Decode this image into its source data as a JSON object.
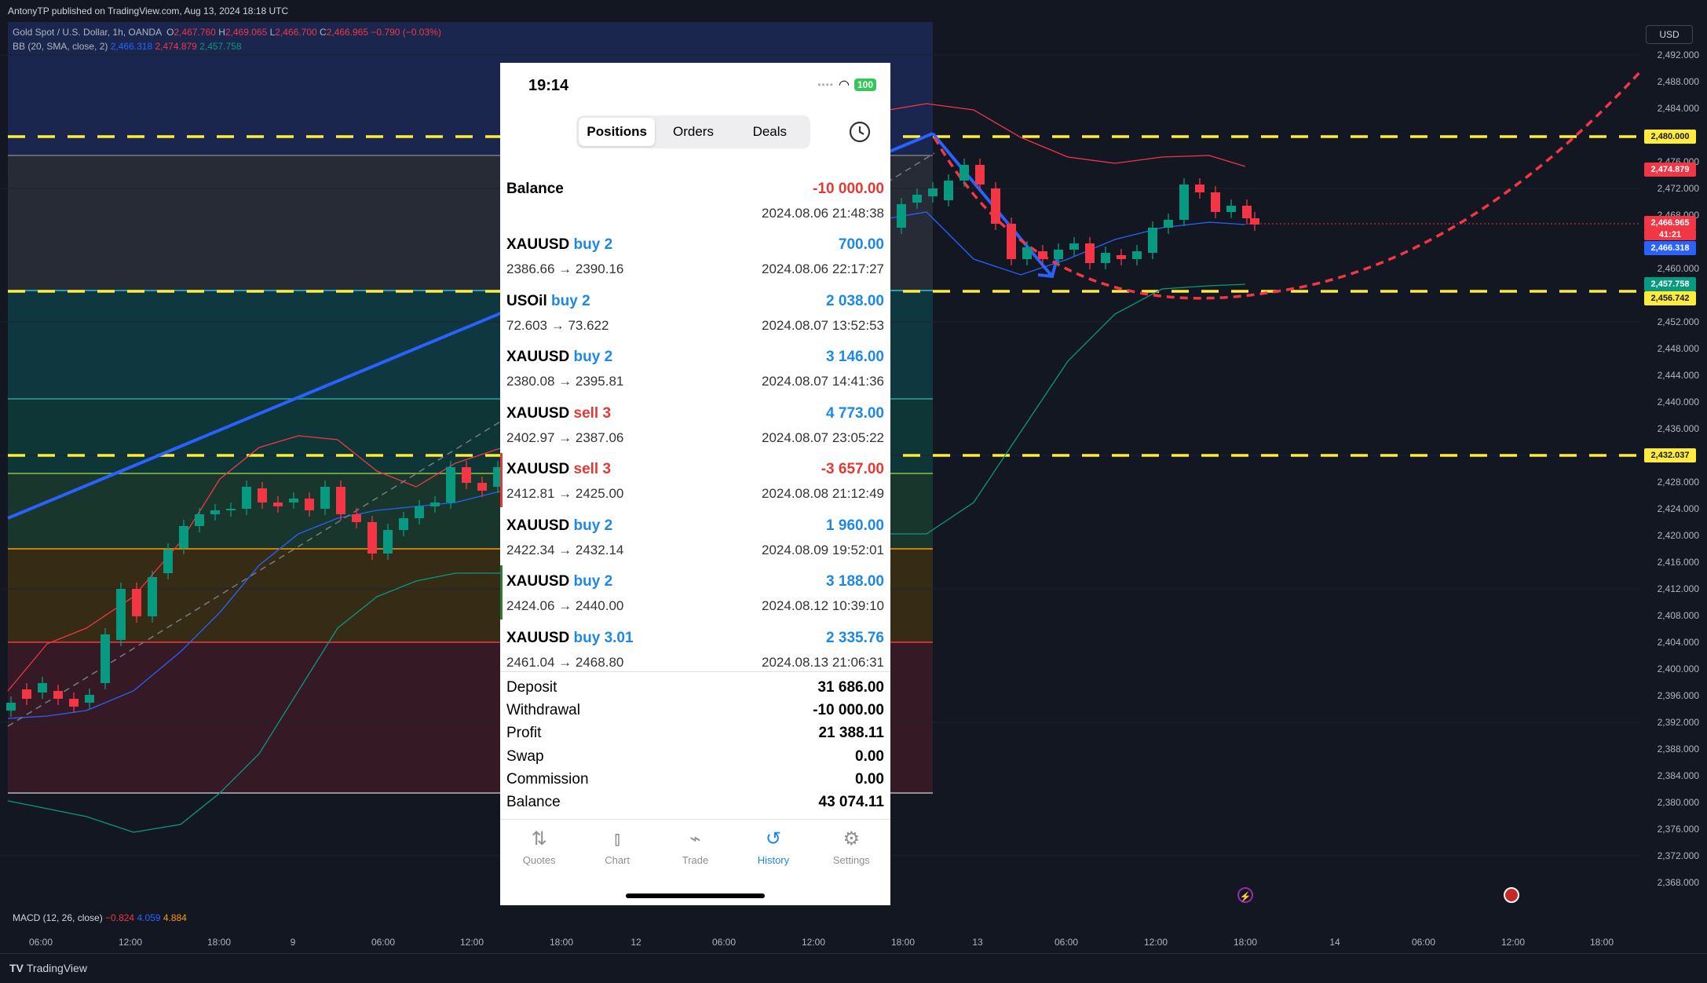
{
  "header": {
    "published_by": "AntonyTP published on TradingView.com, Aug 13, 2024 18:18 UTC",
    "symbol_line": "Gold Spot / U.S. Dollar, 1h, OANDA",
    "ohlc": {
      "o_label": "O",
      "o": "2,467.760",
      "h_label": "H",
      "h": "2,469.065",
      "l_label": "L",
      "l": "2,466.700",
      "c_label": "C",
      "c": "2,466.965",
      "change": "−0.790 (−0.03%)"
    },
    "bb_label": "BB (20, SMA, close, 2)",
    "bb_values": [
      "2,466.318",
      "2,474.879",
      "2,457.758"
    ]
  },
  "currency_button": "USD",
  "macd": {
    "label": "MACD (12, 26, close)",
    "values": [
      "−0.824",
      "4.059",
      "4.884"
    ]
  },
  "footer_logo": "TradingView",
  "price_axis": {
    "ticks": [
      "2,492.000",
      "2,488.000",
      "2,484.000",
      "2,476.000",
      "2,472.000",
      "2,468.000",
      "2,460.000",
      "2,452.000",
      "2,448.000",
      "2,444.000",
      "2,440.000",
      "2,436.000",
      "2,428.000",
      "2,424.000",
      "2,420.000",
      "2,416.000",
      "2,412.000",
      "2,408.000",
      "2,404.000",
      "2,400.000",
      "2,396.000",
      "2,392.000",
      "2,388.000",
      "2,384.000",
      "2,380.000",
      "2,376.000",
      "2,372.000",
      "2,368.000"
    ],
    "tags": {
      "level_2480": "2,480.000",
      "bb_upper": "2,474.879",
      "last_price": "2,466.965",
      "countdown": "41:21",
      "bb_basis": "2,466.318",
      "bb_lower": "2,457.758",
      "level_2456": "2,456.742",
      "level_2432": "2,432.037"
    }
  },
  "time_axis": [
    "06:00",
    "12:00",
    "18:00",
    "9",
    "06:00",
    "12:00",
    "18:00",
    "12",
    "06:00",
    "12:00",
    "18:00",
    "13",
    "06:00",
    "12:00",
    "18:00",
    "14",
    "06:00",
    "12:00",
    "18:00"
  ],
  "phone": {
    "status_time": "19:14",
    "battery": "100",
    "tabs": [
      "Positions",
      "Orders",
      "Deals"
    ],
    "active_tab": "Positions",
    "balance_row": {
      "label": "Balance",
      "amount": "-10 000.00",
      "date": "2024.08.06 21:48:38"
    },
    "deals": [
      {
        "symbol": "XAUUSD",
        "action": "buy 2",
        "type": "buy",
        "prices": "2386.66 → 2390.16",
        "profit": "700.00",
        "date": "2024.08.06 22:17:27"
      },
      {
        "symbol": "USOil",
        "action": "buy 2",
        "type": "buy",
        "prices": "72.603 → 73.622",
        "profit": "2 038.00",
        "date": "2024.08.07 13:52:53"
      },
      {
        "symbol": "XAUUSD",
        "action": "buy 2",
        "type": "buy",
        "prices": "2380.08 → 2395.81",
        "profit": "3 146.00",
        "date": "2024.08.07 14:41:36"
      },
      {
        "symbol": "XAUUSD",
        "action": "sell 3",
        "type": "sell",
        "prices": "2402.97 → 2387.06",
        "profit": "4 773.00",
        "date": "2024.08.07 23:05:22"
      },
      {
        "symbol": "XAUUSD",
        "action": "sell 3",
        "type": "sell",
        "prices": "2412.81 → 2425.00",
        "profit": "-3 657.00",
        "date": "2024.08.08 21:12:49"
      },
      {
        "symbol": "XAUUSD",
        "action": "buy 2",
        "type": "buy",
        "prices": "2422.34 → 2432.14",
        "profit": "1 960.00",
        "date": "2024.08.09 19:52:01"
      },
      {
        "symbol": "XAUUSD",
        "action": "buy 2",
        "type": "buy",
        "prices": "2424.06 → 2440.00",
        "profit": "3 188.00",
        "date": "2024.08.12 10:39:10"
      },
      {
        "symbol": "XAUUSD",
        "action": "buy 3.01",
        "type": "buy",
        "prices": "2461.04 → 2468.80",
        "profit": "2 335.76",
        "date": "2024.08.13 21:06:31"
      }
    ],
    "summary": [
      {
        "label": "Deposit",
        "value": "31 686.00"
      },
      {
        "label": "Withdrawal",
        "value": "-10 000.00"
      },
      {
        "label": "Profit",
        "value": "21 388.11"
      },
      {
        "label": "Swap",
        "value": "0.00"
      },
      {
        "label": "Commission",
        "value": "0.00"
      },
      {
        "label": "Balance",
        "value": "43 074.11"
      }
    ],
    "bottom_tabs": [
      {
        "label": "Quotes",
        "icon": "quotes-icon"
      },
      {
        "label": "Chart",
        "icon": "chart-icon"
      },
      {
        "label": "Trade",
        "icon": "trade-icon"
      },
      {
        "label": "History",
        "icon": "history-icon"
      },
      {
        "label": "Settings",
        "icon": "settings-icon"
      }
    ],
    "active_bottom_tab": "History"
  },
  "colors": {
    "bg": "#131722",
    "up": "#089981",
    "down": "#f23645",
    "dash_level": "#ffeb3b",
    "trend": "#2962ff",
    "bb_upper": "#f23645",
    "bb_basis": "#2962ff",
    "bb_lower": "#089981"
  }
}
